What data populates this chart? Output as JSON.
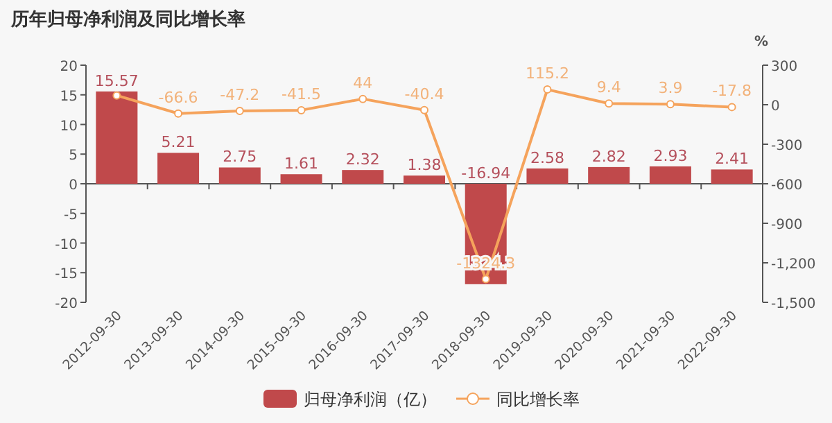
{
  "chart_data": {
    "type": "bar",
    "title": "历年归母净利润及同比增长率",
    "categories": [
      "2012-09-30",
      "2013-09-30",
      "2014-09-30",
      "2015-09-30",
      "2016-09-30",
      "2017-09-30",
      "2018-09-30",
      "2019-09-30",
      "2020-09-30",
      "2021-09-30",
      "2022-09-30"
    ],
    "series": [
      {
        "name": "归母净利润（亿）",
        "color": "#c0494b",
        "values": [
          15.57,
          5.21,
          2.75,
          1.61,
          2.32,
          1.38,
          -16.94,
          2.58,
          2.82,
          2.93,
          2.41
        ]
      },
      {
        "name": "同比增长率",
        "type": "line",
        "axis": "y2",
        "color": "#f5a35c",
        "marker": "circle",
        "values": [
          70,
          -66.6,
          -47.2,
          -41.5,
          44,
          -40.4,
          -1324.3,
          115.2,
          9.4,
          3.9,
          -17.8
        ],
        "value_labels": [
          null,
          "-66.6",
          "-47.2",
          "-41.5",
          "44",
          "-40.4",
          "-1324.3",
          "115.2",
          "9.4",
          "3.9",
          "-17.8"
        ]
      }
    ],
    "data_labels": true,
    "ylim": [
      -20,
      20
    ],
    "yticks": [
      -20,
      -15,
      -10,
      -5,
      0,
      5,
      10,
      15,
      20
    ],
    "y2lim": [
      -1500,
      300
    ],
    "y2ticks": [
      {
        "value": -1500,
        "label": "-1,500"
      },
      {
        "value": -1200,
        "label": "-1,200"
      },
      -900,
      -600,
      -300,
      0,
      300
    ],
    "y2label": "%",
    "legend": "bottom"
  }
}
